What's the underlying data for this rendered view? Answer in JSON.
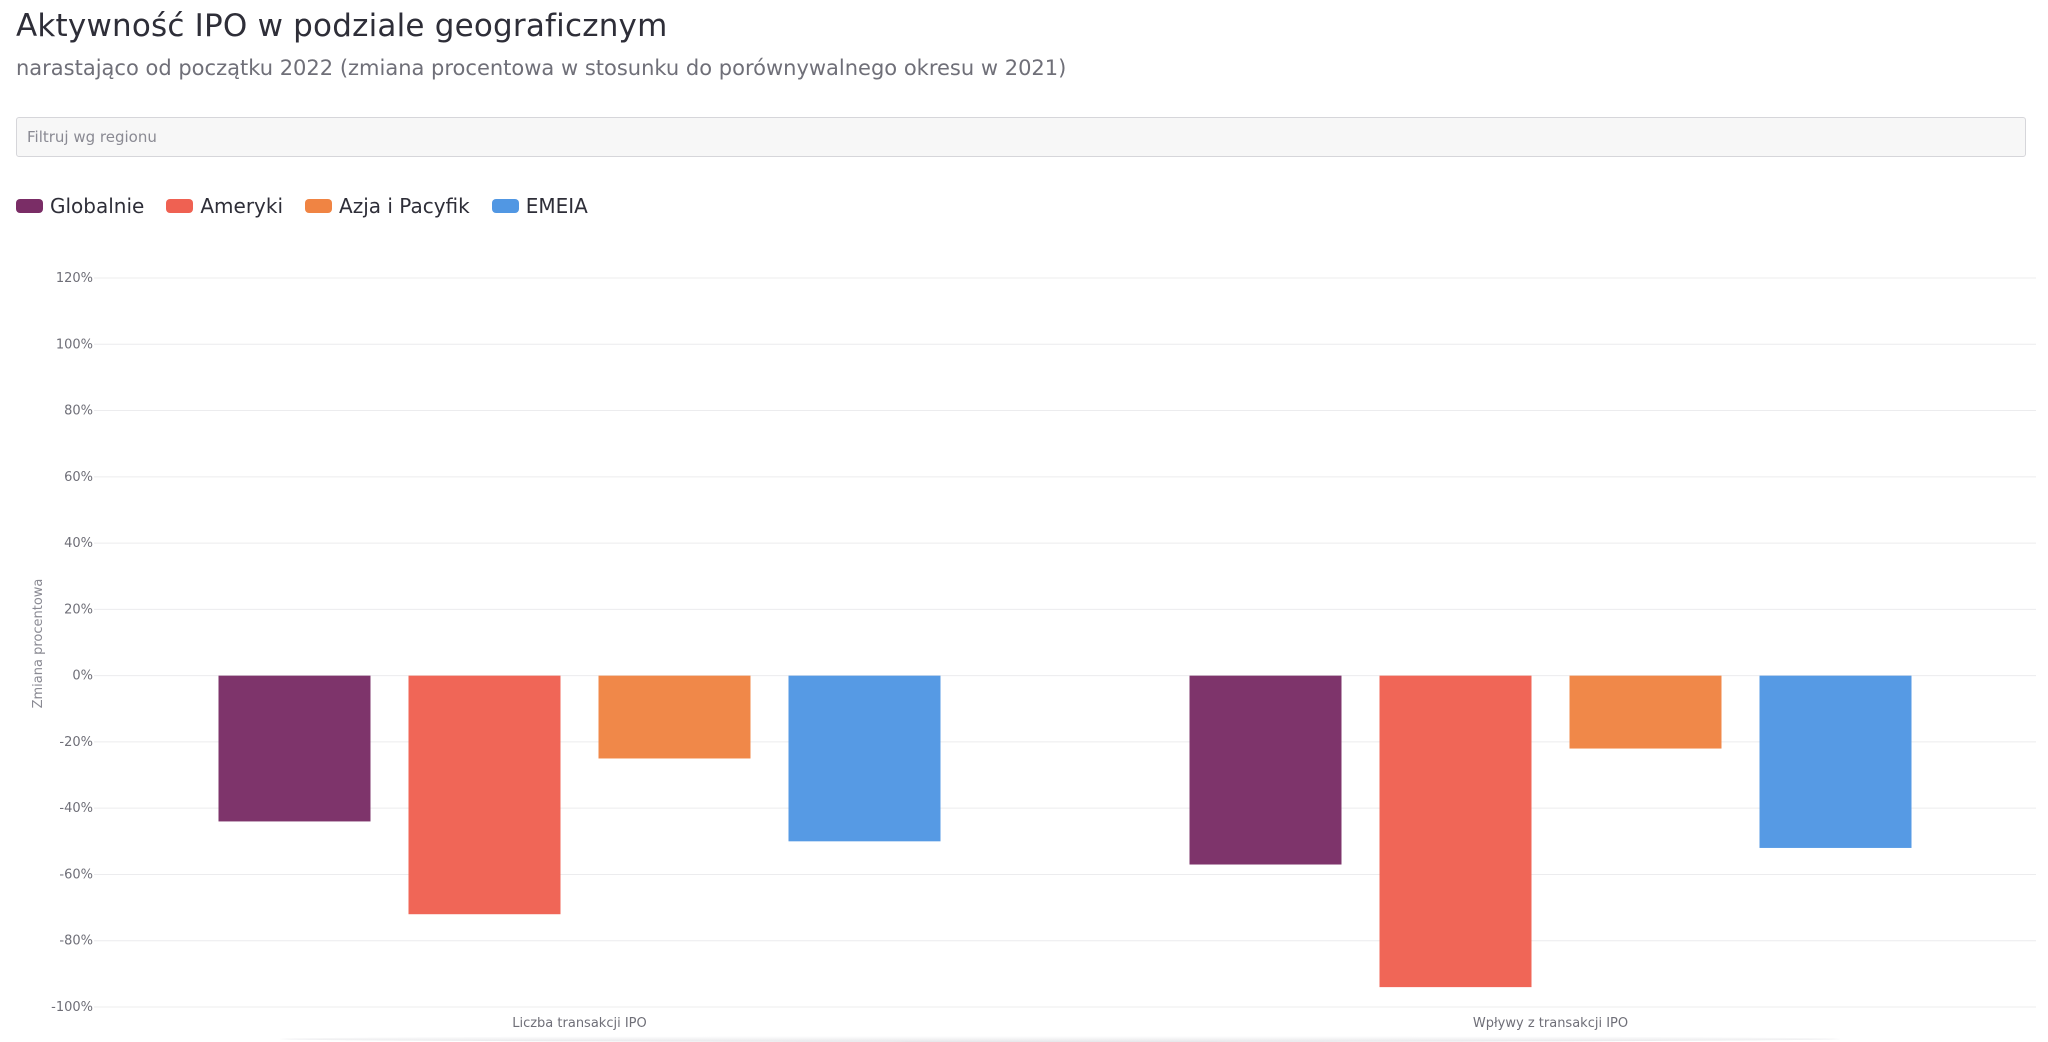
{
  "header": {
    "title": "Aktywność IPO w podziale geograficznym",
    "subtitle": "narastająco od początku 2022 (zmiana procentowa w stosunku do porównywalnego okresu w 2021)"
  },
  "filter": {
    "placeholder": "Filtruj wg regionu",
    "value": ""
  },
  "legend": {
    "items": [
      {
        "label": "Globalnie",
        "color": "#7a2d66"
      },
      {
        "label": "Ameryki",
        "color": "#ef6152"
      },
      {
        "label": "Azja i Pacyfik",
        "color": "#f08443"
      },
      {
        "label": "EMEIA",
        "color": "#5197e3"
      }
    ]
  },
  "chart_data": {
    "type": "bar",
    "categories": [
      "Liczba transakcji IPO",
      "Wpływy z transakcji IPO"
    ],
    "series": [
      {
        "name": "Globalnie",
        "color": "#7a2d66",
        "values": [
          -44,
          -57
        ]
      },
      {
        "name": "Ameryki",
        "color": "#ef6152",
        "values": [
          -72,
          -94
        ]
      },
      {
        "name": "Azja i Pacyfik",
        "color": "#f08443",
        "values": [
          -25,
          -22
        ]
      },
      {
        "name": "EMEIA",
        "color": "#5197e3",
        "values": [
          -50,
          -52
        ]
      }
    ],
    "ylabel": "Zmiana procentowa",
    "xlabel": "",
    "ylim": [
      -100,
      120
    ],
    "yticks": [
      120,
      100,
      80,
      60,
      40,
      20,
      0,
      -20,
      -40,
      -60,
      -80,
      -100
    ],
    "ytick_labels": [
      "120%",
      "100%",
      "80%",
      "60%",
      "40%",
      "20%",
      "0%",
      "-20%",
      "-40%",
      "-60%",
      "-80%",
      "-100%"
    ],
    "grid": true,
    "legend_position": "top-left"
  }
}
